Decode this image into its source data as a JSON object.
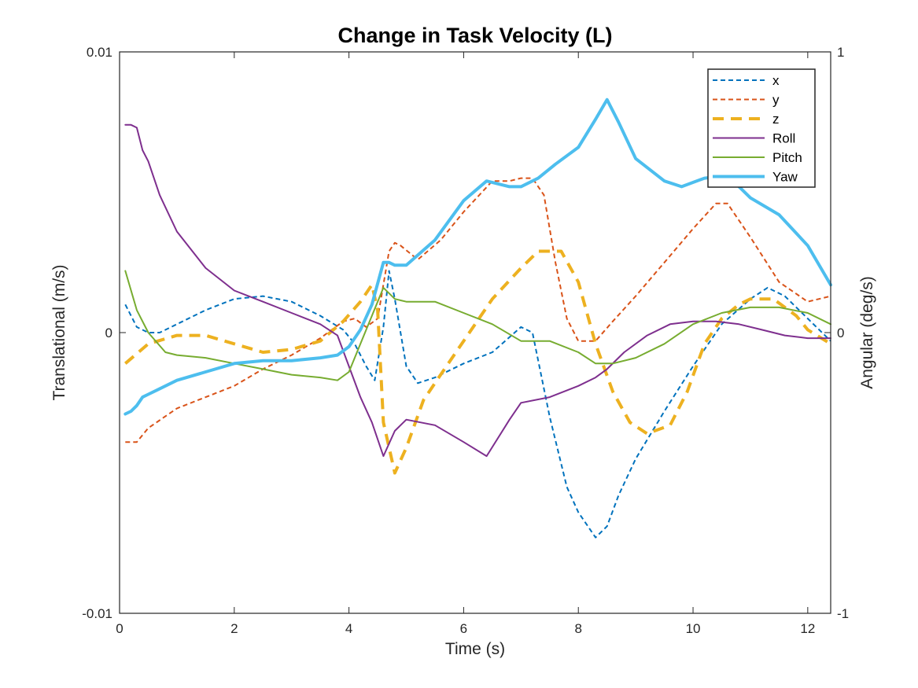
{
  "chart_data": {
    "type": "line",
    "title": "Change in Task Velocity (L)",
    "xlabel": "Time (s)",
    "ylabel_left": "Translational (m/s)",
    "ylabel_right": "Angular (deg/s)",
    "xlim": [
      0,
      12.4
    ],
    "ylim_left": [
      -0.01,
      0.01
    ],
    "ylim_right": [
      -1,
      1
    ],
    "xticks": [
      0,
      2,
      4,
      6,
      8,
      10,
      12
    ],
    "xtick_labels": [
      "0",
      "2",
      "4",
      "6",
      "8",
      "10",
      "12"
    ],
    "yticks_left": [
      -0.01,
      0,
      0.01
    ],
    "ytick_labels_left": [
      "-0.01",
      "0",
      "0.01"
    ],
    "yticks_right": [
      -1,
      0,
      1
    ],
    "ytick_labels_right": [
      "-1",
      "0",
      "1"
    ],
    "grid": false,
    "legend_position": "top-right",
    "series": [
      {
        "name": "x",
        "axis": "left",
        "color": "#0072BD",
        "dash": "dashed",
        "width": 2,
        "x": [
          0.1,
          0.3,
          0.5,
          0.7,
          1.0,
          1.5,
          2.0,
          2.5,
          3.0,
          3.5,
          3.9,
          4.1,
          4.3,
          4.45,
          4.6,
          4.7,
          4.8,
          5.0,
          5.2,
          5.5,
          6.0,
          6.5,
          7.0,
          7.2,
          7.5,
          7.8,
          8.0,
          8.3,
          8.5,
          8.7,
          9.0,
          9.5,
          10.0,
          10.5,
          11.0,
          11.3,
          11.6,
          12.0,
          12.4
        ],
        "y": [
          0.001,
          0.0002,
          0.0,
          0.0,
          0.0003,
          0.0008,
          0.0012,
          0.0013,
          0.0011,
          0.0006,
          0.0001,
          -0.0004,
          -0.0012,
          -0.0017,
          0.0002,
          0.0022,
          0.0012,
          -0.0012,
          -0.0018,
          -0.0016,
          -0.0011,
          -0.0007,
          0.0002,
          0.0,
          -0.003,
          -0.0055,
          -0.0064,
          -0.0073,
          -0.0069,
          -0.0058,
          -0.0045,
          -0.0028,
          -0.0012,
          0.0003,
          0.0012,
          0.0016,
          0.0013,
          0.0005,
          -0.0003
        ]
      },
      {
        "name": "y",
        "axis": "left",
        "color": "#D95319",
        "dash": "dashed",
        "width": 2,
        "x": [
          0.1,
          0.3,
          0.5,
          1.0,
          1.5,
          2.0,
          2.5,
          3.0,
          3.5,
          3.9,
          4.1,
          4.3,
          4.5,
          4.7,
          4.8,
          4.9,
          5.2,
          5.6,
          6.0,
          6.5,
          6.8,
          7.0,
          7.2,
          7.4,
          7.6,
          7.8,
          8.0,
          8.3,
          8.6,
          9.0,
          9.5,
          10.0,
          10.4,
          10.6,
          11.0,
          11.5,
          12.0,
          12.4
        ],
        "y": [
          -0.0039,
          -0.0039,
          -0.0034,
          -0.0027,
          -0.0023,
          -0.0019,
          -0.0013,
          -0.0008,
          -0.0002,
          0.0004,
          0.0005,
          0.0002,
          0.0005,
          0.0029,
          0.0032,
          0.0031,
          0.0026,
          0.0033,
          0.0043,
          0.0054,
          0.0054,
          0.0055,
          0.0055,
          0.0049,
          0.0025,
          0.0005,
          -0.0003,
          -0.0003,
          0.0004,
          0.0013,
          0.0025,
          0.0037,
          0.0046,
          0.0046,
          0.0034,
          0.0018,
          0.0011,
          0.0013
        ]
      },
      {
        "name": "z",
        "axis": "left",
        "color": "#EDB120",
        "dash": "heavydash",
        "width": 4,
        "x": [
          0.1,
          0.5,
          1.0,
          1.5,
          2.0,
          2.5,
          3.0,
          3.5,
          3.9,
          4.2,
          4.4,
          4.5,
          4.6,
          4.8,
          5.0,
          5.3,
          5.7,
          6.0,
          6.5,
          7.0,
          7.3,
          7.7,
          8.0,
          8.3,
          8.6,
          8.9,
          9.2,
          9.6,
          9.9,
          10.2,
          10.5,
          10.8,
          11.0,
          11.4,
          11.8,
          12.0,
          12.4
        ],
        "y": [
          -0.0011,
          -0.0004,
          -0.0001,
          -0.0001,
          -0.0004,
          -0.0007,
          -0.0006,
          -0.0003,
          0.0004,
          0.0011,
          0.0017,
          0.0008,
          -0.0032,
          -0.005,
          -0.0041,
          -0.0024,
          -0.0012,
          -0.0003,
          0.0012,
          0.0023,
          0.0029,
          0.0029,
          0.0018,
          -0.0004,
          -0.0021,
          -0.0032,
          -0.0036,
          -0.0033,
          -0.0021,
          -0.0004,
          0.0005,
          0.001,
          0.0012,
          0.0012,
          0.0006,
          0.0001,
          -0.0004
        ]
      },
      {
        "name": "Roll",
        "axis": "right",
        "color": "#7E2F8E",
        "dash": "solid",
        "width": 2,
        "x": [
          0.1,
          0.2,
          0.3,
          0.4,
          0.5,
          0.7,
          1.0,
          1.5,
          2.0,
          2.5,
          3.0,
          3.5,
          3.8,
          4.2,
          4.4,
          4.6,
          4.8,
          5.0,
          5.5,
          6.0,
          6.4,
          6.8,
          7.0,
          7.5,
          8.0,
          8.3,
          8.5,
          8.8,
          9.2,
          9.6,
          10.0,
          10.4,
          10.8,
          11.2,
          11.6,
          12.0,
          12.4
        ],
        "y": [
          0.74,
          0.74,
          0.73,
          0.65,
          0.61,
          0.49,
          0.36,
          0.23,
          0.15,
          0.11,
          0.07,
          0.03,
          -0.01,
          -0.23,
          -0.32,
          -0.44,
          -0.35,
          -0.31,
          -0.33,
          -0.39,
          -0.44,
          -0.31,
          -0.25,
          -0.23,
          -0.19,
          -0.16,
          -0.13,
          -0.07,
          -0.01,
          0.03,
          0.04,
          0.04,
          0.03,
          0.01,
          -0.01,
          -0.02,
          -0.02
        ]
      },
      {
        "name": "Pitch",
        "axis": "right",
        "color": "#77AC30",
        "dash": "solid",
        "width": 2,
        "x": [
          0.1,
          0.3,
          0.5,
          0.8,
          1.0,
          1.5,
          2.0,
          2.5,
          3.0,
          3.5,
          3.8,
          4.0,
          4.2,
          4.4,
          4.6,
          4.8,
          5.0,
          5.5,
          6.0,
          6.5,
          7.0,
          7.5,
          8.0,
          8.3,
          8.6,
          9.0,
          9.5,
          10.0,
          10.5,
          11.0,
          11.5,
          12.0,
          12.4
        ],
        "y": [
          0.22,
          0.08,
          0.0,
          -0.07,
          -0.08,
          -0.09,
          -0.11,
          -0.13,
          -0.15,
          -0.16,
          -0.17,
          -0.14,
          -0.04,
          0.06,
          0.16,
          0.12,
          0.11,
          0.11,
          0.07,
          0.03,
          -0.03,
          -0.03,
          -0.07,
          -0.11,
          -0.11,
          -0.09,
          -0.04,
          0.03,
          0.07,
          0.09,
          0.09,
          0.07,
          0.03
        ]
      },
      {
        "name": "Yaw",
        "axis": "right",
        "color": "#4DBEEE",
        "dash": "solid",
        "width": 4,
        "x": [
          0.1,
          0.2,
          0.3,
          0.4,
          0.5,
          0.7,
          1.0,
          1.5,
          2.0,
          2.5,
          3.0,
          3.5,
          3.8,
          4.0,
          4.2,
          4.4,
          4.6,
          4.7,
          4.8,
          5.0,
          5.5,
          6.0,
          6.4,
          6.8,
          7.0,
          7.3,
          7.6,
          8.0,
          8.3,
          8.5,
          8.7,
          9.0,
          9.5,
          9.8,
          10.2,
          10.6,
          11.0,
          11.5,
          12.0,
          12.4
        ],
        "y": [
          -0.29,
          -0.28,
          -0.26,
          -0.23,
          -0.22,
          -0.2,
          -0.17,
          -0.14,
          -0.11,
          -0.1,
          -0.1,
          -0.09,
          -0.08,
          -0.05,
          0.01,
          0.1,
          0.25,
          0.25,
          0.24,
          0.24,
          0.33,
          0.47,
          0.54,
          0.52,
          0.52,
          0.55,
          0.6,
          0.66,
          0.76,
          0.83,
          0.75,
          0.62,
          0.54,
          0.52,
          0.55,
          0.56,
          0.48,
          0.42,
          0.31,
          0.17
        ]
      }
    ]
  }
}
